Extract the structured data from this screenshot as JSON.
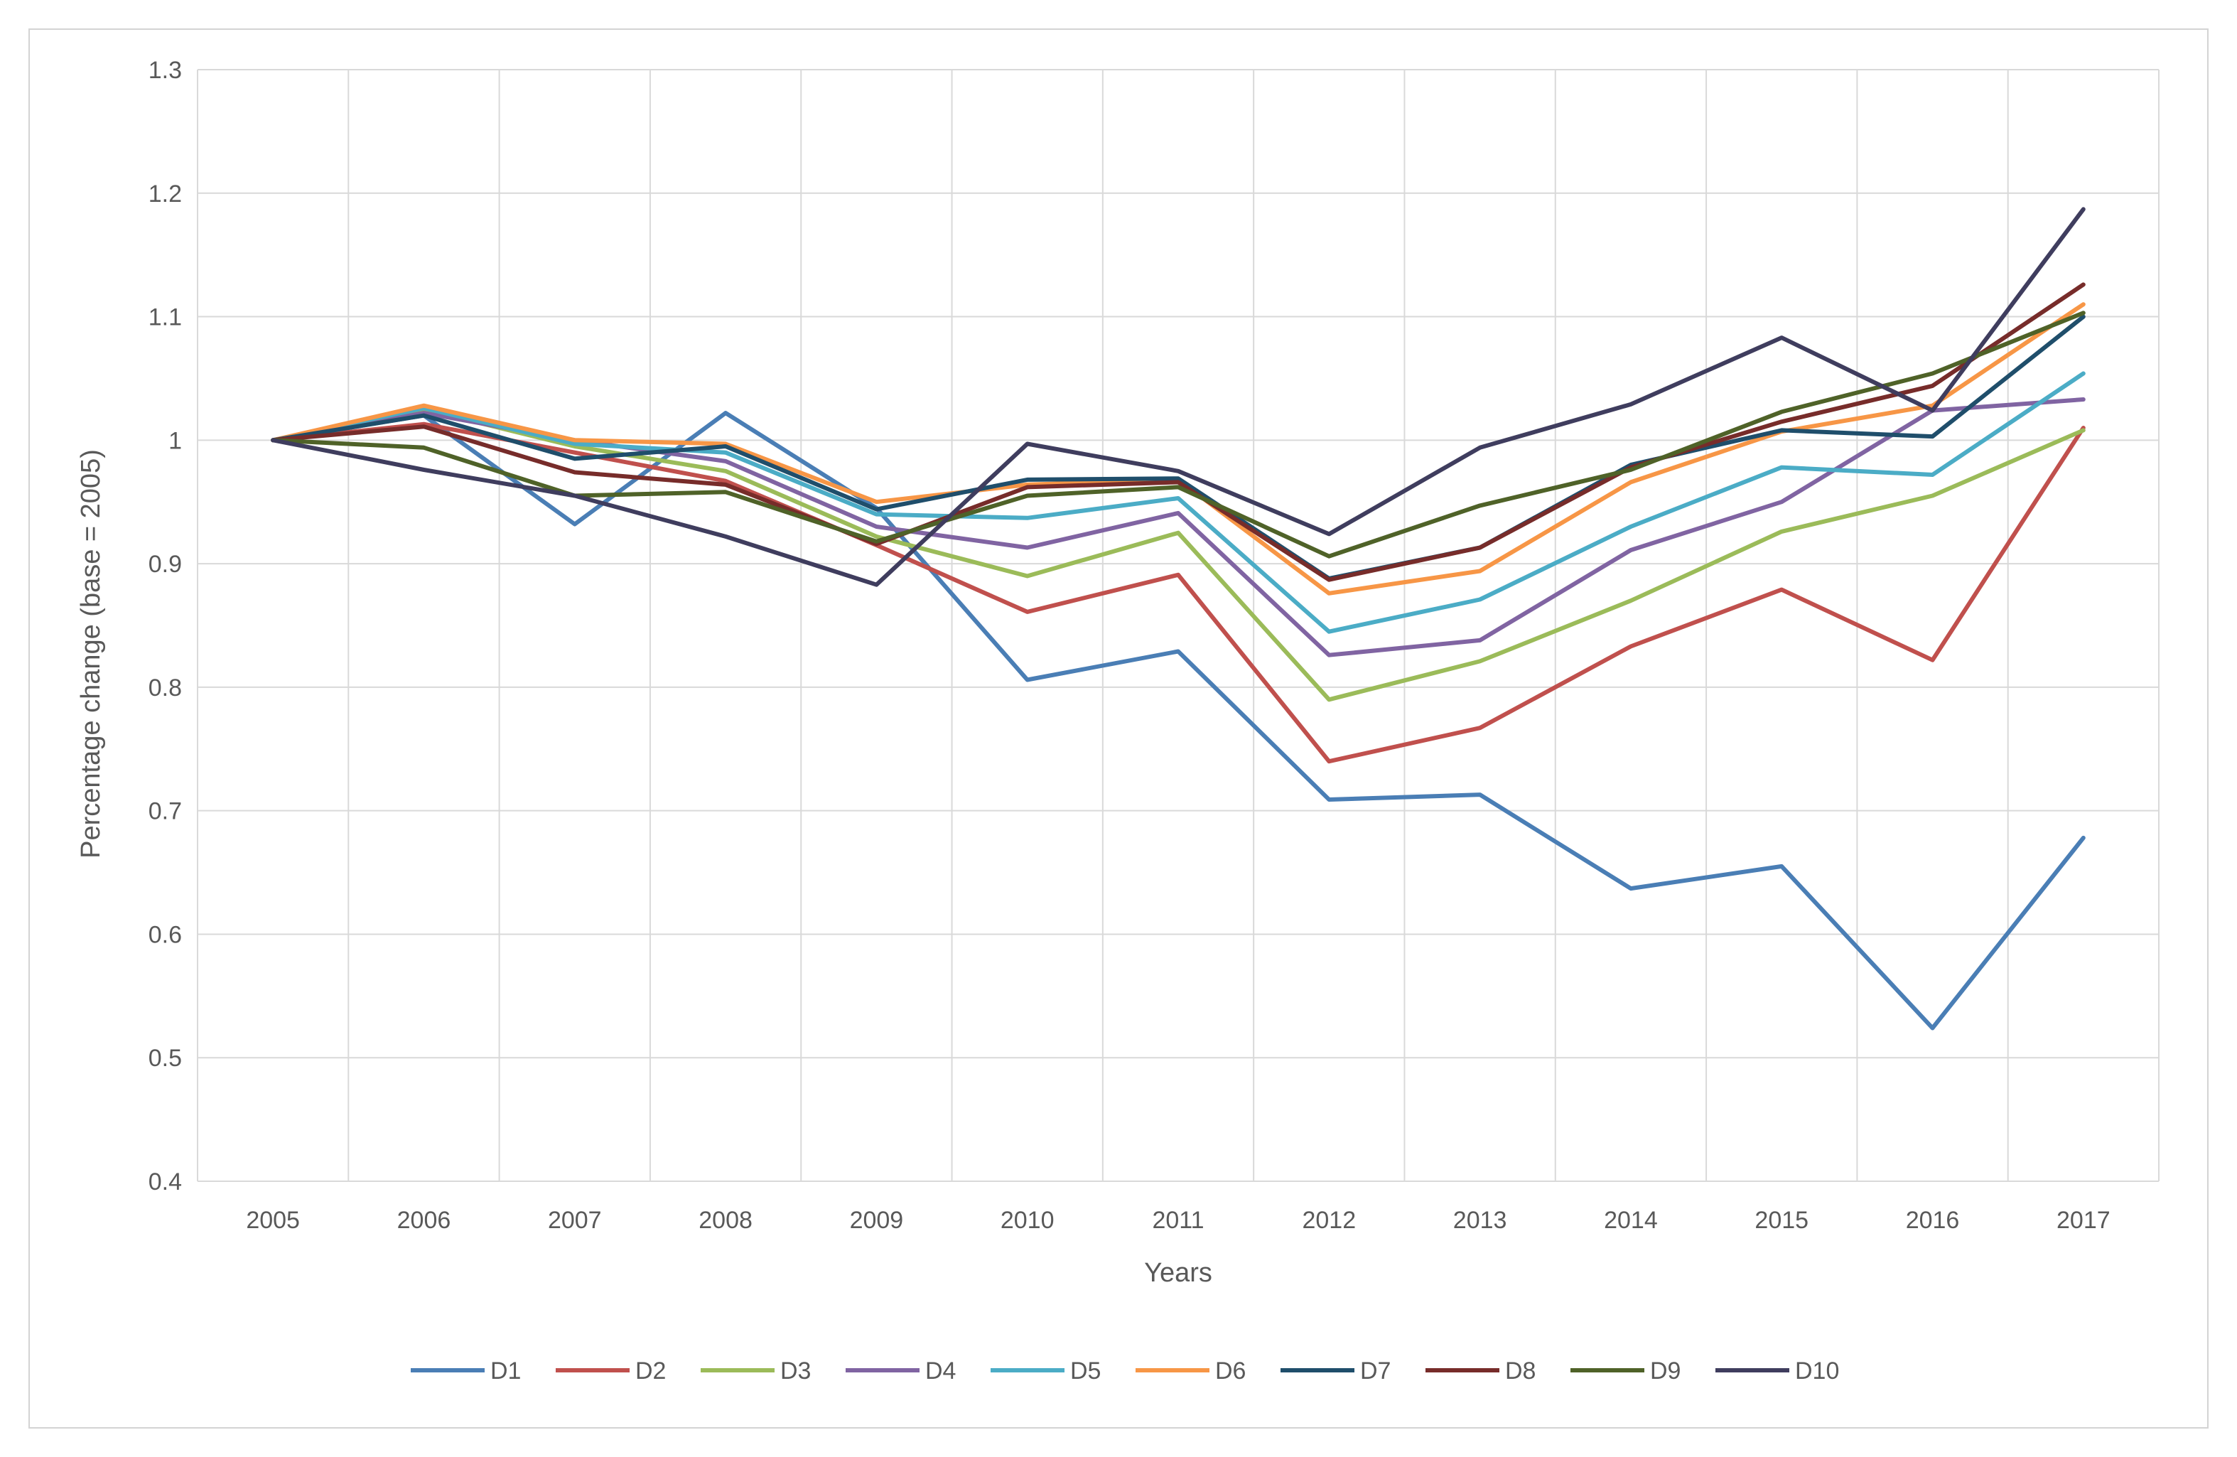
{
  "chart_data": {
    "type": "line",
    "title": "",
    "xlabel": "Years",
    "ylabel": "Percentage change (base = 2005)",
    "ylim": [
      0.4,
      1.3
    ],
    "yticks": [
      "0.4",
      "0.5",
      "0.6",
      "0.7",
      "0.8",
      "0.9",
      "1",
      "1.1",
      "1.2",
      "1.3"
    ],
    "grid": true,
    "legend_position": "bottom",
    "categories": [
      "2005",
      "2006",
      "2007",
      "2008",
      "2009",
      "2010",
      "2011",
      "2012",
      "2013",
      "2014",
      "2015",
      "2016",
      "2017"
    ],
    "series": [
      {
        "name": "D1",
        "color": "#4a7eb5",
        "values": [
          1.0,
          1.02,
          0.932,
          1.022,
          0.945,
          0.806,
          0.829,
          0.709,
          0.713,
          0.637,
          0.655,
          0.524,
          0.678
        ]
      },
      {
        "name": "D2",
        "color": "#c0504d",
        "values": [
          1.0,
          1.013,
          0.99,
          0.967,
          0.915,
          0.861,
          0.891,
          0.74,
          0.767,
          0.833,
          0.879,
          0.822,
          1.01
        ]
      },
      {
        "name": "D3",
        "color": "#9bbb59",
        "values": [
          1.0,
          1.025,
          0.995,
          0.975,
          0.922,
          0.89,
          0.925,
          0.79,
          0.821,
          0.87,
          0.926,
          0.955,
          1.008
        ]
      },
      {
        "name": "D4",
        "color": "#8064a2",
        "values": [
          1.0,
          1.022,
          1.0,
          0.983,
          0.93,
          0.913,
          0.941,
          0.826,
          0.838,
          0.911,
          0.95,
          1.024,
          1.033
        ]
      },
      {
        "name": "D5",
        "color": "#4bacc6",
        "values": [
          1.0,
          1.026,
          0.997,
          0.99,
          0.94,
          0.937,
          0.953,
          0.845,
          0.871,
          0.93,
          0.978,
          0.972,
          1.054
        ]
      },
      {
        "name": "D6",
        "color": "#f79646",
        "values": [
          1.0,
          1.028,
          1.0,
          0.997,
          0.95,
          0.964,
          0.968,
          0.876,
          0.894,
          0.966,
          1.007,
          1.028,
          1.11
        ]
      },
      {
        "name": "D7",
        "color": "#1f4e6b",
        "values": [
          1.0,
          1.02,
          0.985,
          0.995,
          0.944,
          0.968,
          0.969,
          0.888,
          0.913,
          0.98,
          1.008,
          1.003,
          1.1
        ]
      },
      {
        "name": "D8",
        "color": "#772c2a",
        "values": [
          1.0,
          1.011,
          0.974,
          0.964,
          0.916,
          0.962,
          0.966,
          0.887,
          0.913,
          0.978,
          1.015,
          1.044,
          1.126
        ]
      },
      {
        "name": "D9",
        "color": "#4f6228",
        "values": [
          1.0,
          0.994,
          0.955,
          0.958,
          0.918,
          0.955,
          0.962,
          0.906,
          0.947,
          0.976,
          1.023,
          1.054,
          1.103
        ]
      },
      {
        "name": "D10",
        "color": "#3f3d5e",
        "values": [
          1.0,
          0.976,
          0.955,
          0.922,
          0.883,
          0.997,
          0.975,
          0.924,
          0.994,
          1.029,
          1.083,
          1.024,
          1.187
        ]
      }
    ]
  }
}
